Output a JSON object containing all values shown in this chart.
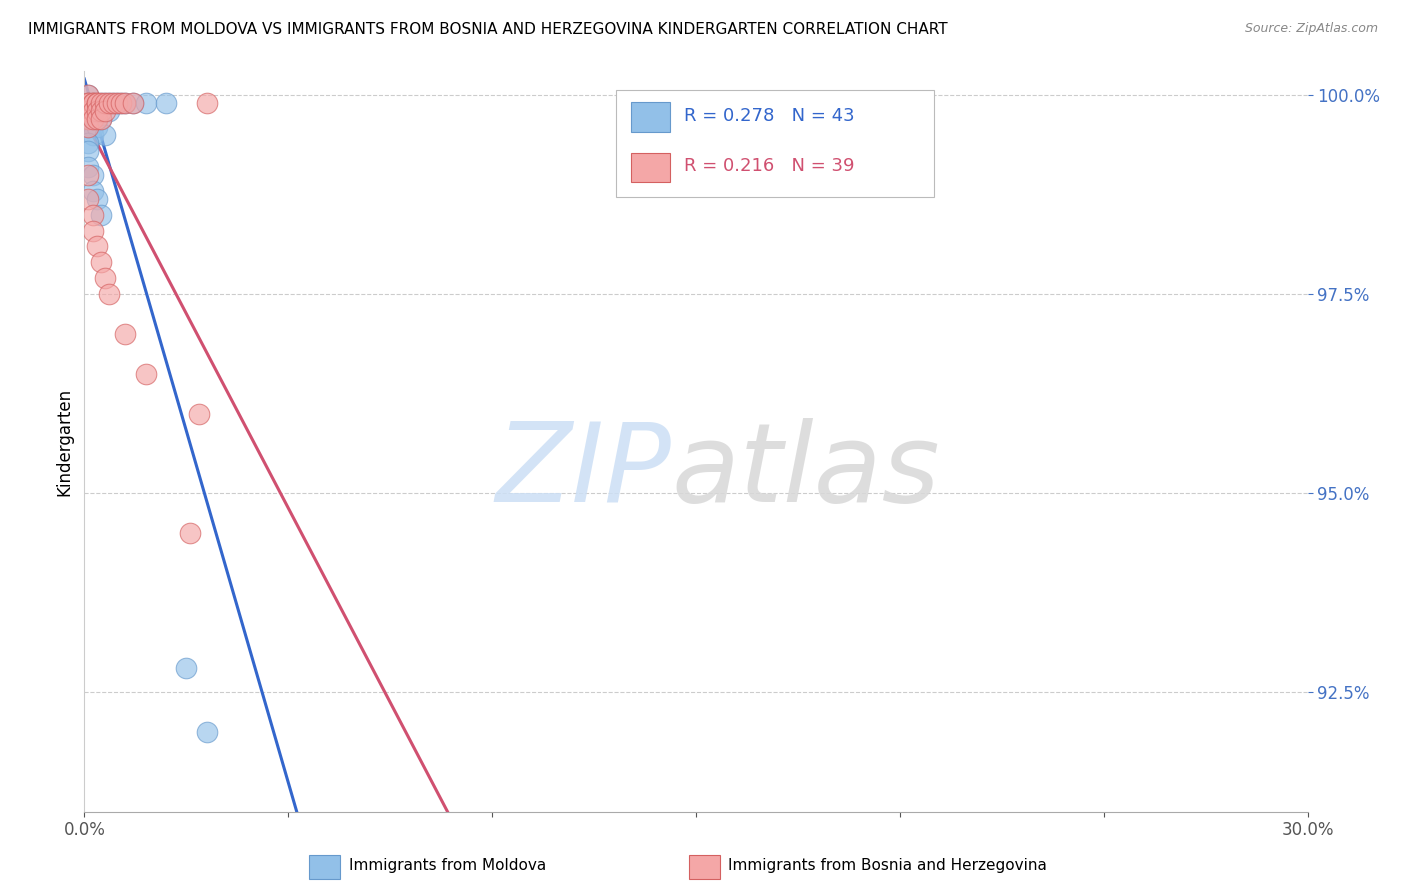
{
  "title": "IMMIGRANTS FROM MOLDOVA VS IMMIGRANTS FROM BOSNIA AND HERZEGOVINA KINDERGARTEN CORRELATION CHART",
  "source": "Source: ZipAtlas.com",
  "ylabel": "Kindergarten",
  "series": [
    {
      "name": "Immigrants from Moldova",
      "color": "#92c0e8",
      "edge_color": "#6699cc",
      "R": 0.278,
      "N": 43,
      "line_color": "#3366cc",
      "x": [
        0.001,
        0.001,
        0.001,
        0.001,
        0.001,
        0.001,
        0.001,
        0.001,
        0.001,
        0.001,
        0.002,
        0.002,
        0.002,
        0.002,
        0.002,
        0.002,
        0.002,
        0.003,
        0.003,
        0.003,
        0.003,
        0.004,
        0.004,
        0.005,
        0.005,
        0.006,
        0.006,
        0.007,
        0.008,
        0.009,
        0.01,
        0.012,
        0.015,
        0.02,
        0.001,
        0.001,
        0.001,
        0.002,
        0.002,
        0.003,
        0.004,
        0.025,
        0.03
      ],
      "y": [
        1.0,
        0.999,
        0.999,
        0.999,
        0.998,
        0.998,
        0.997,
        0.997,
        0.996,
        0.996,
        0.999,
        0.999,
        0.998,
        0.997,
        0.997,
        0.996,
        0.995,
        0.999,
        0.998,
        0.997,
        0.996,
        0.999,
        0.997,
        0.999,
        0.995,
        0.999,
        0.998,
        0.999,
        0.999,
        0.999,
        0.999,
        0.999,
        0.999,
        0.999,
        0.994,
        0.993,
        0.991,
        0.99,
        0.988,
        0.987,
        0.985,
        0.928,
        0.92
      ]
    },
    {
      "name": "Immigrants from Bosnia and Herzegovina",
      "color": "#f4a7a7",
      "edge_color": "#d46060",
      "R": 0.216,
      "N": 39,
      "line_color": "#d05070",
      "x": [
        0.001,
        0.001,
        0.001,
        0.001,
        0.001,
        0.001,
        0.001,
        0.002,
        0.002,
        0.002,
        0.002,
        0.003,
        0.003,
        0.003,
        0.003,
        0.004,
        0.004,
        0.004,
        0.005,
        0.005,
        0.006,
        0.007,
        0.008,
        0.009,
        0.01,
        0.012,
        0.001,
        0.001,
        0.002,
        0.002,
        0.003,
        0.004,
        0.005,
        0.006,
        0.01,
        0.015,
        0.026,
        0.028,
        0.03
      ],
      "y": [
        1.0,
        0.999,
        0.999,
        0.998,
        0.998,
        0.997,
        0.996,
        0.999,
        0.999,
        0.998,
        0.997,
        0.999,
        0.999,
        0.998,
        0.997,
        0.999,
        0.998,
        0.997,
        0.999,
        0.998,
        0.999,
        0.999,
        0.999,
        0.999,
        0.999,
        0.999,
        0.99,
        0.987,
        0.985,
        0.983,
        0.981,
        0.979,
        0.977,
        0.975,
        0.97,
        0.965,
        0.945,
        0.96,
        0.999
      ]
    }
  ],
  "xlim": [
    0.0,
    0.3
  ],
  "ylim": [
    0.91,
    1.003
  ],
  "yticks": [
    0.925,
    0.95,
    0.975,
    1.0
  ],
  "ytick_labels": [
    "92.5%",
    "95.0%",
    "97.5%",
    "100.0%"
  ],
  "xticks": [
    0.0,
    0.05,
    0.1,
    0.15,
    0.2,
    0.25,
    0.3
  ],
  "xtick_labels": [
    "0.0%",
    "",
    "",
    "",
    "",
    "",
    "30.0%"
  ],
  "grid_color": "#cccccc",
  "background_color": "#ffffff",
  "title_fontsize": 11,
  "source_fontsize": 9,
  "axis_label_color": "#4472c4",
  "watermark_zip_color": "#ccdff5",
  "watermark_atlas_color": "#d8d8d8"
}
